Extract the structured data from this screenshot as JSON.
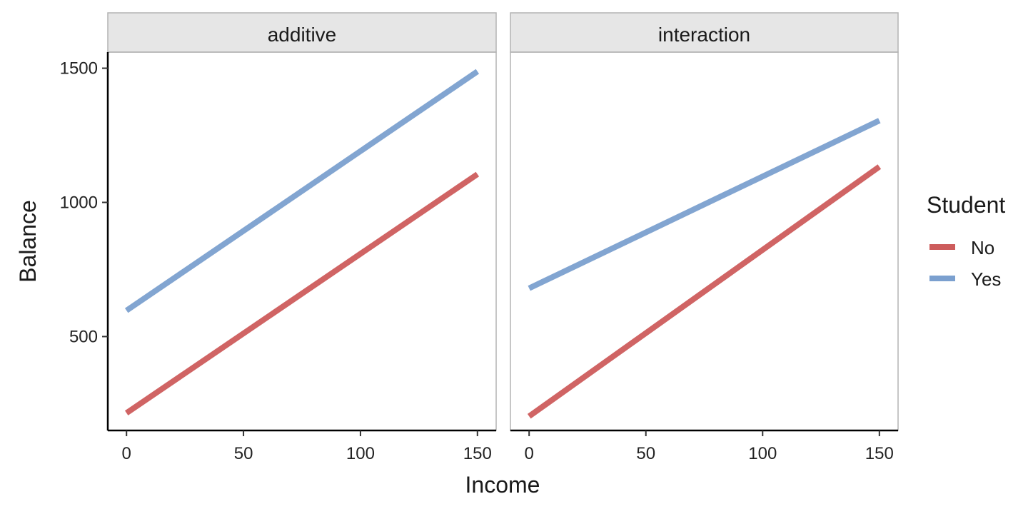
{
  "chart_data": {
    "type": "line",
    "xlabel": "Income",
    "ylabel": "Balance",
    "xlim": [
      -8,
      158
    ],
    "ylim": [
      150,
      1560
    ],
    "x_ticks": [
      0,
      50,
      100,
      150
    ],
    "x_tick_labels": [
      "0",
      "50",
      "100",
      "150"
    ],
    "y_ticks": [
      500,
      1000,
      1500
    ],
    "y_tick_labels": [
      "500",
      "1000",
      "1500"
    ],
    "legend": {
      "title": "Student",
      "position": "right",
      "entries": [
        {
          "name": "No",
          "color": "#CD5C5C"
        },
        {
          "name": "Yes",
          "color": "#7BA0CF"
        }
      ]
    },
    "panels": [
      {
        "title": "additive",
        "series": [
          {
            "name": "No",
            "color": "#CD5C5C",
            "x": [
              0,
              150
            ],
            "y": [
              215,
              1105
            ]
          },
          {
            "name": "Yes",
            "color": "#7BA0CF",
            "x": [
              0,
              150
            ],
            "y": [
              597,
              1488
            ]
          }
        ]
      },
      {
        "title": "interaction",
        "series": [
          {
            "name": "No",
            "color": "#CD5C5C",
            "x": [
              0,
              150
            ],
            "y": [
              203,
              1133
            ]
          },
          {
            "name": "Yes",
            "color": "#7BA0CF",
            "x": [
              0,
              150
            ],
            "y": [
              680,
              1305
            ]
          }
        ]
      }
    ]
  }
}
